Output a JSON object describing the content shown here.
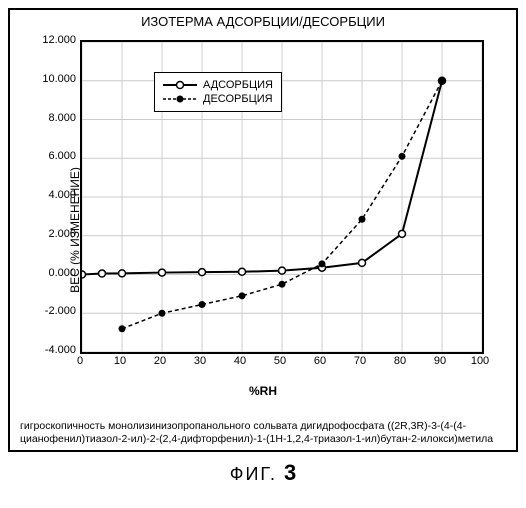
{
  "chart": {
    "type": "line",
    "title": "ИЗОТЕРМА АДСОРБЦИИ/ДЕСОРБЦИИ",
    "xlabel": "%RH",
    "ylabel": "ВЕС (% ИЗМЕНЕНИЕ)",
    "xlim": [
      0,
      100
    ],
    "ylim": [
      -4.0,
      12.0
    ],
    "xtick_step": 10,
    "ytick_step": 2.0,
    "xticks": [
      0,
      10,
      20,
      30,
      40,
      50,
      60,
      70,
      80,
      90,
      100
    ],
    "yticks": [
      -4.0,
      -2.0,
      0.0,
      2.0,
      4.0,
      6.0,
      8.0,
      10.0,
      12.0
    ],
    "ytick_format": "3dec",
    "grid_color": "#cccccc",
    "background_color": "#ffffff",
    "series": [
      {
        "name": "АДСОРБЦИЯ",
        "x": [
          0,
          5,
          10,
          20,
          30,
          40,
          50,
          60,
          70,
          80,
          90
        ],
        "y": [
          0.0,
          0.05,
          0.06,
          0.1,
          0.12,
          0.14,
          0.2,
          0.35,
          0.6,
          2.1,
          10.0
        ],
        "line_style": "solid",
        "line_width": 2,
        "color": "#000000",
        "marker": "circle-open",
        "marker_size": 5
      },
      {
        "name": "ДЕСОРБЦИЯ",
        "x": [
          10,
          20,
          30,
          40,
          50,
          60,
          70,
          80,
          90
        ],
        "y": [
          -2.8,
          -2.0,
          -1.55,
          -1.1,
          -0.5,
          0.55,
          2.85,
          6.1,
          10.0
        ],
        "line_style": "dashed",
        "line_width": 1.5,
        "color": "#000000",
        "marker": "circle-filled",
        "marker_size": 5
      }
    ],
    "legend": {
      "position": "upper-left-inside",
      "items": [
        "АДСОРБЦИЯ",
        "ДЕСОРБЦИЯ"
      ]
    }
  },
  "caption": "гигроскопичность монолизинизопропанольного сольвата дигидрофосфата ((2R,3R)-3-(4-(4-цианофенил)тиазол-2-ил)-2-(2,4-дифторфенил)-1-(1H-1,2,4-триазол-1-ил)бутан-2-илокси)метила",
  "figure_label_prefix": "ФИГ.",
  "figure_number": "3"
}
